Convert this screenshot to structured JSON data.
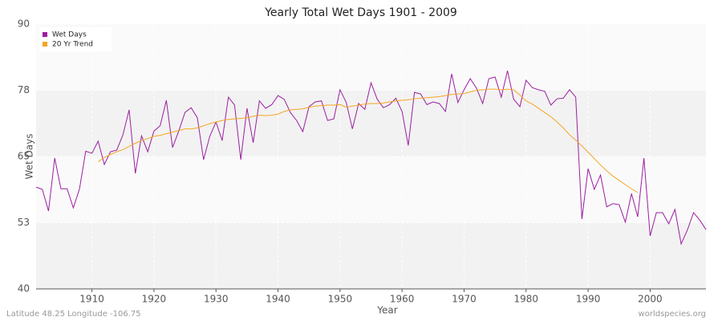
{
  "chart_data": {
    "type": "line",
    "title": "Yearly Total Wet Days 1901 - 2009",
    "xlabel": "Year",
    "ylabel": "Wet Days",
    "footer_left": "Latitude 48.25 Longitude -106.75",
    "footer_right": "worldspecies.org",
    "x": [
      1901,
      1902,
      1903,
      1904,
      1905,
      1906,
      1907,
      1908,
      1909,
      1910,
      1911,
      1912,
      1913,
      1914,
      1915,
      1916,
      1917,
      1918,
      1919,
      1920,
      1921,
      1922,
      1923,
      1924,
      1925,
      1926,
      1927,
      1928,
      1929,
      1930,
      1931,
      1932,
      1933,
      1934,
      1935,
      1936,
      1937,
      1938,
      1939,
      1940,
      1941,
      1942,
      1943,
      1944,
      1945,
      1946,
      1947,
      1948,
      1949,
      1950,
      1951,
      1952,
      1953,
      1954,
      1955,
      1956,
      1957,
      1958,
      1959,
      1960,
      1961,
      1962,
      1963,
      1964,
      1965,
      1966,
      1967,
      1968,
      1969,
      1970,
      1971,
      1972,
      1973,
      1974,
      1975,
      1976,
      1977,
      1978,
      1979,
      1980,
      1981,
      1982,
      1983,
      1984,
      1985,
      1986,
      1987,
      1988,
      1989,
      1990,
      1991,
      1992,
      1993,
      1994,
      1995,
      1996,
      1997,
      1998,
      1999,
      2000,
      2001,
      2002,
      2003,
      2004,
      2005,
      2006,
      2007,
      2008,
      2009
    ],
    "series": [
      {
        "name": "Wet Days",
        "color": "#9b1fa0",
        "values": [
          59.2,
          58.8,
          54.7,
          64.7,
          58.9,
          58.9,
          55.3,
          58.9,
          66,
          65.6,
          67.9,
          63.5,
          65.9,
          66.2,
          69.1,
          73.8,
          61.8,
          68.9,
          65.9,
          69.8,
          70.8,
          75.6,
          66.7,
          69.8,
          73.3,
          74.2,
          72.3,
          64.4,
          68.8,
          71.5,
          68,
          76.2,
          74.7,
          64.4,
          74.1,
          67.6,
          75.5,
          74.1,
          74.8,
          76.5,
          75.8,
          73.3,
          71.8,
          69.7,
          74.4,
          75.3,
          75.5,
          71.8,
          72.1,
          77.6,
          75.2,
          70.2,
          75,
          73.9,
          78.9,
          75.8,
          74.2,
          74.8,
          76,
          73.5,
          67.1,
          77.1,
          76.8,
          74.8,
          75.3,
          75,
          73.5,
          80.6,
          75.2,
          77.6,
          79.7,
          77.9,
          75,
          79.7,
          80,
          76.2,
          81.2,
          75.8,
          74.4,
          79.4,
          78,
          77.6,
          77.3,
          74.7,
          75.9,
          76,
          77.6,
          76.2,
          53.2,
          62.7,
          58.8,
          61.5,
          55.5,
          56.1,
          55.9,
          52.6,
          58,
          53.6,
          64.7,
          50,
          54.4,
          54.4,
          52.3,
          55,
          48.5,
          51.1,
          54.4,
          53,
          51.2
        ]
      },
      {
        "name": "20 Yr Trend",
        "color": "#f5a623",
        "values": [
          null,
          null,
          null,
          null,
          null,
          null,
          null,
          null,
          null,
          null,
          64.0,
          64.8,
          65.4,
          65.9,
          66.3,
          66.9,
          67.5,
          68.0,
          68.4,
          68.8,
          69.0,
          69.3,
          69.6,
          69.9,
          70.2,
          70.2,
          70.4,
          70.8,
          71.2,
          71.5,
          71.8,
          72.0,
          72.1,
          72.2,
          72.3,
          72.6,
          72.8,
          72.7,
          72.8,
          73.0,
          73.5,
          73.8,
          73.9,
          74.0,
          74.3,
          74.5,
          74.6,
          74.7,
          74.7,
          74.8,
          74.3,
          74.5,
          74.7,
          74.9,
          75.0,
          75.0,
          75.1,
          75.3,
          75.5,
          75.6,
          75.7,
          75.9,
          76.0,
          76.1,
          76.2,
          76.3,
          76.5,
          76.7,
          76.8,
          76.9,
          77.2,
          77.5,
          77.6,
          77.7,
          77.7,
          77.6,
          77.7,
          77.6,
          76.6,
          75.5,
          74.9,
          74.1,
          73.3,
          72.5,
          71.5,
          70.4,
          69.1,
          68.1,
          67.0,
          65.8,
          64.6,
          63.4,
          62.3,
          61.3,
          60.5,
          59.7,
          58.9,
          58.2,
          null,
          null,
          null,
          null,
          null,
          null,
          null,
          null,
          null,
          null,
          null
        ]
      }
    ],
    "xlim": [
      1901,
      2009
    ],
    "xticks": [
      1910,
      1920,
      1930,
      1940,
      1950,
      1960,
      1970,
      1980,
      1990,
      2000
    ],
    "ylim": [
      40,
      90
    ],
    "yticks": [
      40,
      {
        "value": 52.5,
        "label": "53"
      },
      65,
      {
        "value": 77.5,
        "label": "78"
      },
      90
    ],
    "grid": true,
    "legend": "upper left"
  }
}
